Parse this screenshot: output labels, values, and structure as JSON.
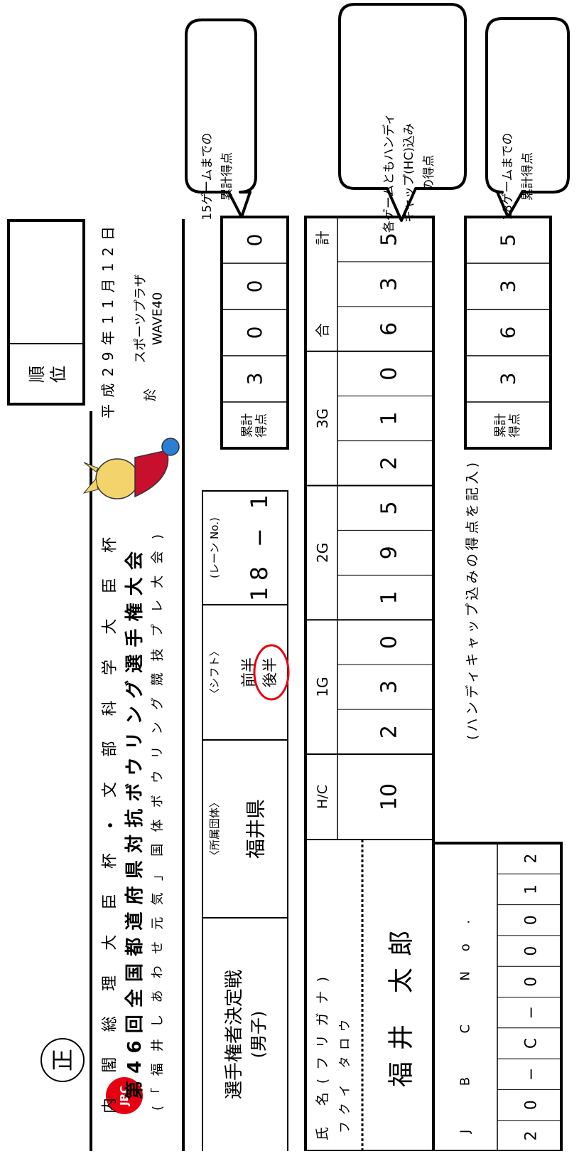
{
  "header": {
    "seal": "正",
    "rank_label": [
      "順",
      "位"
    ],
    "logo": "JBC",
    "title_line1": "内閣総理大臣杯・文部科学大臣杯",
    "title_line2": "第46回全国都道府県対抗ボウリング選手権大会",
    "title_line3": "(「福井しあわせ元気」国体ボウリング競技プレ大会)",
    "date": "平成29年11月12日",
    "venue_mark": "於",
    "venue": [
      "スポーツプラザ",
      "WAVE40"
    ]
  },
  "entry": {
    "event": [
      "選手権者決定戦",
      "(男子)"
    ],
    "org_label": "〈所属団体〉",
    "org": "福井県",
    "shift_label": "〈シフト〉",
    "shift_options": [
      "前半",
      "後半"
    ],
    "lane_label": "(レーン No.)",
    "lane": "18 − 1"
  },
  "cumulative_15": {
    "label": [
      "累計",
      "得点"
    ],
    "digits": [
      "3",
      "0",
      "0",
      "0"
    ]
  },
  "scores": {
    "name_label": "氏 名(フリガナ)",
    "kana": "フクイ タロウ",
    "name": "福井 太郎",
    "hc_label": "H/C",
    "hc": "10",
    "games": [
      {
        "label": "1G",
        "digits": [
          "2",
          "3",
          "0"
        ]
      },
      {
        "label": "2G",
        "digits": [
          "1",
          "9",
          "5"
        ]
      },
      {
        "label": "3G",
        "digits": [
          "2",
          "1",
          "0"
        ]
      }
    ],
    "total_label": "合 計",
    "total": [
      "6",
      "3",
      "5"
    ]
  },
  "jbc": {
    "label": "J B C No.",
    "digits": [
      "2",
      "0",
      "−",
      "C",
      "−",
      "0",
      "0",
      "0",
      "1",
      "2"
    ]
  },
  "note": "(ハンディキャップ込みの得点を記入)",
  "cumulative_18": {
    "label": [
      "累計",
      "得点"
    ],
    "digits": [
      "3",
      "6",
      "3",
      "5"
    ]
  },
  "callouts": [
    {
      "lines": [
        "15ゲームまでの",
        "累計得点"
      ]
    },
    {
      "lines": [
        "各ゲームともハンディ",
        "キャップ(HC)込み",
        "の得点"
      ]
    },
    {
      "lines": [
        "18ゲームまでの",
        "累計得点"
      ]
    }
  ]
}
